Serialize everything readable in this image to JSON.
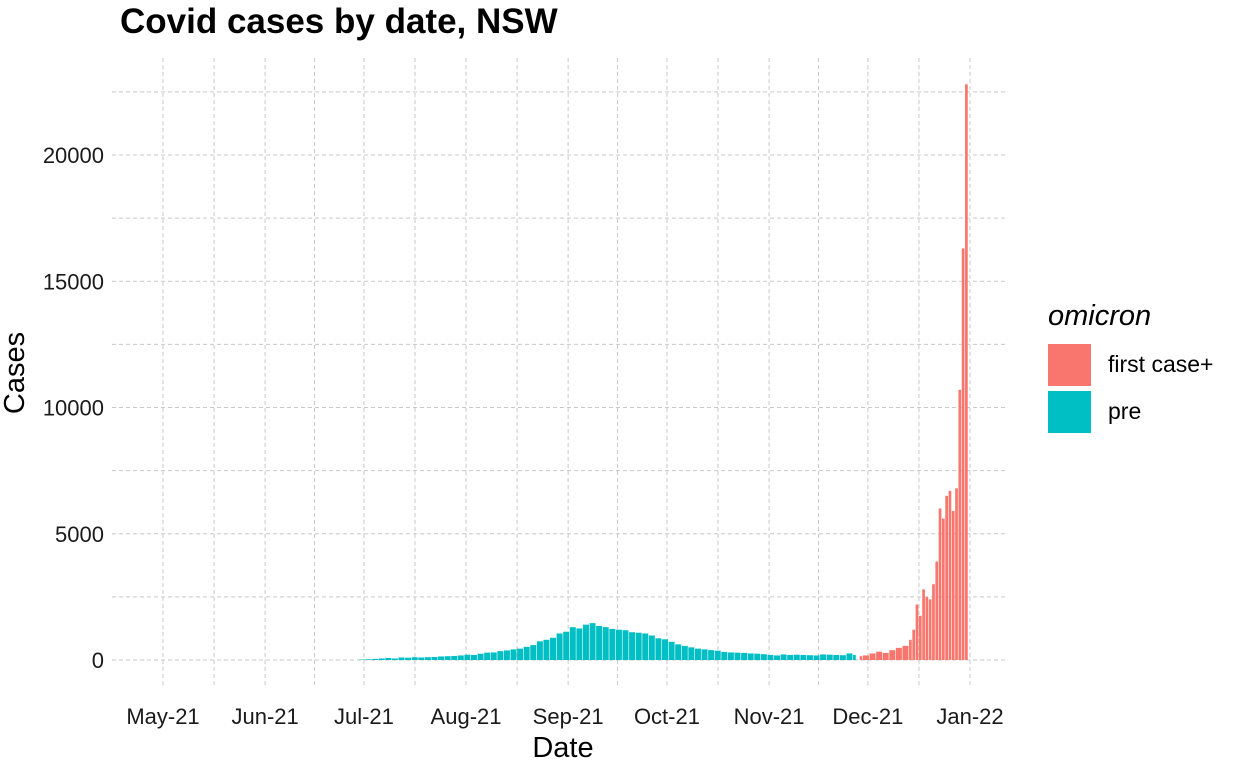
{
  "chart_data": {
    "type": "bar",
    "title": "Covid cases by date, NSW",
    "xlabel": "Date",
    "ylabel": "Cases",
    "x_ticks": [
      "May-21",
      "Jun-21",
      "Jul-21",
      "Aug-21",
      "Sep-21",
      "Oct-21",
      "Nov-21",
      "Dec-21",
      "Jan-22"
    ],
    "y_ticks": [
      0,
      5000,
      10000,
      15000,
      20000
    ],
    "ylim": [
      0,
      22500
    ],
    "grid": "dashed",
    "legend": {
      "title": "omicron",
      "position": "right"
    },
    "series": [
      {
        "name": "pre",
        "color": "#00BFC4",
        "points": [
          [
            "2021-06-30",
            20
          ],
          [
            "2021-07-02",
            30
          ],
          [
            "2021-07-04",
            40
          ],
          [
            "2021-07-06",
            60
          ],
          [
            "2021-07-08",
            80
          ],
          [
            "2021-07-10",
            60
          ],
          [
            "2021-07-12",
            100
          ],
          [
            "2021-07-14",
            90
          ],
          [
            "2021-07-16",
            110
          ],
          [
            "2021-07-18",
            100
          ],
          [
            "2021-07-20",
            110
          ],
          [
            "2021-07-22",
            120
          ],
          [
            "2021-07-24",
            140
          ],
          [
            "2021-07-26",
            150
          ],
          [
            "2021-07-28",
            160
          ],
          [
            "2021-07-30",
            180
          ],
          [
            "2021-08-01",
            210
          ],
          [
            "2021-08-03",
            200
          ],
          [
            "2021-08-05",
            250
          ],
          [
            "2021-08-07",
            290
          ],
          [
            "2021-08-09",
            300
          ],
          [
            "2021-08-11",
            350
          ],
          [
            "2021-08-13",
            380
          ],
          [
            "2021-08-15",
            420
          ],
          [
            "2021-08-17",
            450
          ],
          [
            "2021-08-19",
            520
          ],
          [
            "2021-08-21",
            590
          ],
          [
            "2021-08-23",
            740
          ],
          [
            "2021-08-25",
            800
          ],
          [
            "2021-08-27",
            880
          ],
          [
            "2021-08-29",
            1050
          ],
          [
            "2021-08-31",
            1120
          ],
          [
            "2021-09-02",
            1300
          ],
          [
            "2021-09-04",
            1250
          ],
          [
            "2021-09-06",
            1400
          ],
          [
            "2021-09-08",
            1460
          ],
          [
            "2021-09-10",
            1350
          ],
          [
            "2021-09-12",
            1300
          ],
          [
            "2021-09-14",
            1230
          ],
          [
            "2021-09-16",
            1200
          ],
          [
            "2021-09-18",
            1180
          ],
          [
            "2021-09-20",
            1100
          ],
          [
            "2021-09-22",
            1080
          ],
          [
            "2021-09-24",
            1050
          ],
          [
            "2021-09-26",
            970
          ],
          [
            "2021-09-28",
            860
          ],
          [
            "2021-09-30",
            820
          ],
          [
            "2021-10-02",
            720
          ],
          [
            "2021-10-04",
            620
          ],
          [
            "2021-10-06",
            560
          ],
          [
            "2021-10-08",
            500
          ],
          [
            "2021-10-10",
            450
          ],
          [
            "2021-10-12",
            420
          ],
          [
            "2021-10-14",
            390
          ],
          [
            "2021-10-16",
            370
          ],
          [
            "2021-10-18",
            320
          ],
          [
            "2021-10-20",
            300
          ],
          [
            "2021-10-22",
            290
          ],
          [
            "2021-10-24",
            280
          ],
          [
            "2021-10-26",
            260
          ],
          [
            "2021-10-28",
            250
          ],
          [
            "2021-10-30",
            230
          ],
          [
            "2021-11-01",
            200
          ],
          [
            "2021-11-03",
            180
          ],
          [
            "2021-11-05",
            220
          ],
          [
            "2021-11-07",
            200
          ],
          [
            "2021-11-09",
            210
          ],
          [
            "2021-11-11",
            200
          ],
          [
            "2021-11-13",
            190
          ],
          [
            "2021-11-15",
            180
          ],
          [
            "2021-11-17",
            220
          ],
          [
            "2021-11-19",
            210
          ],
          [
            "2021-11-21",
            200
          ],
          [
            "2021-11-23",
            190
          ],
          [
            "2021-11-25",
            260
          ],
          [
            "2021-11-27",
            200
          ]
        ]
      },
      {
        "name": "first case+",
        "color": "#F8766D",
        "points": [
          [
            "2021-11-29",
            150
          ],
          [
            "2021-11-30",
            180
          ],
          [
            "2021-12-02",
            260
          ],
          [
            "2021-12-04",
            330
          ],
          [
            "2021-12-06",
            280
          ],
          [
            "2021-12-08",
            390
          ],
          [
            "2021-12-10",
            480
          ],
          [
            "2021-12-12",
            560
          ],
          [
            "2021-12-14",
            800
          ],
          [
            "2021-12-15",
            1200
          ],
          [
            "2021-12-16",
            2200
          ],
          [
            "2021-12-17",
            1750
          ],
          [
            "2021-12-18",
            2800
          ],
          [
            "2021-12-19",
            2500
          ],
          [
            "2021-12-20",
            2400
          ],
          [
            "2021-12-21",
            3000
          ],
          [
            "2021-12-22",
            3900
          ],
          [
            "2021-12-23",
            6000
          ],
          [
            "2021-12-24",
            5600
          ],
          [
            "2021-12-25",
            6500
          ],
          [
            "2021-12-26",
            6700
          ],
          [
            "2021-12-27",
            5900
          ],
          [
            "2021-12-28",
            6800
          ],
          [
            "2021-12-29",
            10700
          ],
          [
            "2021-12-30",
            16300
          ],
          [
            "2021-12-31",
            22800
          ]
        ]
      }
    ]
  }
}
